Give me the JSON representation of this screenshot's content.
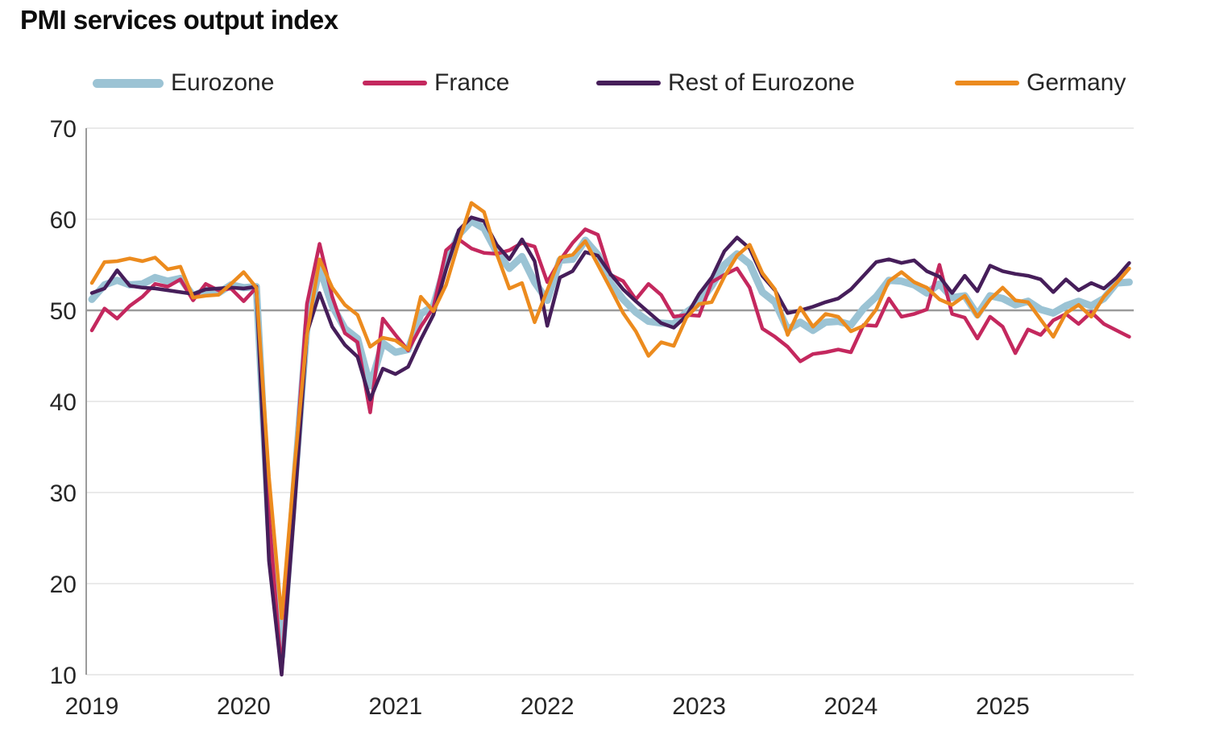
{
  "title": "PMI services output index",
  "legend": [
    {
      "label": "Eurozone",
      "color": "#9bc3d4"
    },
    {
      "label": "France",
      "color": "#c4285e"
    },
    {
      "label": "Rest of Eurozone",
      "color": "#461e5a"
    },
    {
      "label": "Germany",
      "color": "#ec8b1e"
    }
  ],
  "colors": {
    "grid": "#e4e4e4",
    "baseline_50": "#9b9b9b",
    "axis": "#9b9b9b",
    "tick_text": "#262626",
    "title_text": "#0d0d0d"
  },
  "chart_data": {
    "type": "line",
    "title": "PMI services output index",
    "xlabel": "",
    "ylabel": "",
    "ylim": [
      10,
      70
    ],
    "yticks": [
      10,
      20,
      30,
      40,
      50,
      60,
      70
    ],
    "baseline": 50,
    "grid": true,
    "legend_position": "top",
    "xtick_labels": [
      "2019",
      "2020",
      "2021",
      "2022",
      "2023",
      "2024",
      "2025"
    ],
    "x": [
      "2019-01",
      "2019-02",
      "2019-03",
      "2019-04",
      "2019-05",
      "2019-06",
      "2019-07",
      "2019-08",
      "2019-09",
      "2019-10",
      "2019-11",
      "2019-12",
      "2020-01",
      "2020-02",
      "2020-03",
      "2020-04",
      "2020-05",
      "2020-06",
      "2020-07",
      "2020-08",
      "2020-09",
      "2020-10",
      "2020-11",
      "2020-12",
      "2021-01",
      "2021-02",
      "2021-03",
      "2021-04",
      "2021-05",
      "2021-06",
      "2021-07",
      "2021-08",
      "2021-09",
      "2021-10",
      "2021-11",
      "2021-12",
      "2022-01",
      "2022-02",
      "2022-03",
      "2022-04",
      "2022-05",
      "2022-06",
      "2022-07",
      "2022-08",
      "2022-09",
      "2022-10",
      "2022-11",
      "2022-12",
      "2023-01",
      "2023-02",
      "2023-03",
      "2023-04",
      "2023-05",
      "2023-06",
      "2023-07",
      "2023-08",
      "2023-09",
      "2023-10",
      "2023-11",
      "2023-12",
      "2024-01",
      "2024-02",
      "2024-03",
      "2024-04",
      "2024-05",
      "2024-06",
      "2024-07",
      "2024-08",
      "2024-09",
      "2024-10",
      "2024-11",
      "2024-12",
      "2025-01",
      "2025-02",
      "2025-03",
      "2025-04",
      "2025-05",
      "2025-06",
      "2025-07",
      "2025-08",
      "2025-09",
      "2025-10",
      "2025-11"
    ],
    "series": [
      {
        "name": "Eurozone",
        "color": "#9bc3d4",
        "width": 9,
        "values": [
          51.2,
          52.8,
          53.3,
          52.8,
          52.9,
          53.6,
          53.2,
          53.5,
          51.6,
          52.2,
          51.9,
          52.8,
          52.5,
          52.6,
          26.4,
          12.0,
          30.5,
          48.3,
          54.7,
          50.5,
          48.0,
          46.9,
          41.7,
          46.4,
          45.4,
          45.7,
          49.6,
          50.5,
          55.2,
          58.3,
          59.8,
          59.0,
          56.4,
          54.6,
          55.9,
          53.1,
          51.1,
          55.5,
          55.6,
          57.7,
          56.1,
          53.0,
          51.2,
          49.8,
          48.8,
          48.6,
          48.5,
          49.8,
          50.8,
          52.7,
          55.0,
          56.2,
          55.1,
          52.0,
          50.9,
          47.9,
          48.7,
          47.8,
          48.7,
          48.8,
          48.4,
          50.2,
          51.5,
          53.3,
          53.2,
          52.8,
          51.9,
          52.9,
          51.4,
          51.6,
          49.5,
          51.6,
          51.3,
          50.6,
          51.0,
          50.1,
          49.7,
          50.5,
          51.0,
          50.5,
          51.3,
          53.0,
          53.1
        ]
      },
      {
        "name": "France",
        "color": "#c4285e",
        "width": 4.5,
        "values": [
          47.8,
          50.2,
          49.1,
          50.5,
          51.5,
          52.9,
          52.6,
          53.4,
          51.1,
          52.9,
          52.2,
          52.4,
          51.0,
          52.5,
          27.4,
          10.2,
          31.1,
          50.7,
          57.3,
          51.5,
          47.5,
          46.5,
          38.8,
          49.1,
          47.3,
          45.6,
          48.2,
          50.3,
          56.6,
          57.8,
          56.8,
          56.3,
          56.2,
          56.6,
          57.4,
          57.0,
          53.1,
          55.5,
          57.4,
          58.9,
          58.3,
          53.9,
          53.2,
          51.2,
          52.9,
          51.7,
          49.3,
          49.5,
          49.4,
          53.1,
          53.9,
          54.6,
          52.5,
          48.0,
          47.1,
          46.0,
          44.4,
          45.2,
          45.4,
          45.7,
          45.4,
          48.4,
          48.3,
          51.3,
          49.3,
          49.6,
          50.1,
          55.0,
          49.6,
          49.2,
          46.9,
          49.3,
          48.2,
          45.3,
          47.9,
          47.3,
          48.9,
          49.6,
          48.5,
          49.8,
          48.5,
          47.8,
          47.1
        ]
      },
      {
        "name": "Rest of Eurozone",
        "color": "#461e5a",
        "width": 4.5,
        "values": [
          51.9,
          52.4,
          54.4,
          52.7,
          52.5,
          52.4,
          52.2,
          52.0,
          51.8,
          52.3,
          52.4,
          52.5,
          52.4,
          52.6,
          22.5,
          10.0,
          28.0,
          47.5,
          51.9,
          48.2,
          46.2,
          44.9,
          40.2,
          43.6,
          43.0,
          43.8,
          46.8,
          49.5,
          54.5,
          58.8,
          60.2,
          59.8,
          57.2,
          55.6,
          57.8,
          55.4,
          48.3,
          53.6,
          54.3,
          56.4,
          56.0,
          54.0,
          52.3,
          51.0,
          49.8,
          48.6,
          48.1,
          49.4,
          51.8,
          53.6,
          56.5,
          58.0,
          56.8,
          53.8,
          52.2,
          49.7,
          50.0,
          50.4,
          50.9,
          51.3,
          52.3,
          53.8,
          55.3,
          55.6,
          55.2,
          55.5,
          54.3,
          53.7,
          51.9,
          53.8,
          52.1,
          54.9,
          54.3,
          54.0,
          53.8,
          53.4,
          52.0,
          53.4,
          52.2,
          53.0,
          52.4,
          53.6,
          55.2
        ]
      },
      {
        "name": "Germany",
        "color": "#ec8b1e",
        "width": 4.5,
        "values": [
          53.0,
          55.3,
          55.4,
          55.7,
          55.4,
          55.8,
          54.5,
          54.8,
          51.4,
          51.6,
          51.7,
          52.9,
          54.2,
          52.5,
          31.7,
          16.2,
          32.6,
          47.3,
          55.6,
          52.5,
          50.6,
          49.5,
          46.0,
          47.0,
          46.7,
          45.7,
          51.5,
          49.9,
          52.8,
          57.5,
          61.8,
          60.8,
          56.2,
          52.4,
          53.0,
          48.7,
          52.2,
          55.8,
          56.1,
          57.6,
          55.0,
          52.4,
          49.7,
          47.7,
          45.0,
          46.5,
          46.1,
          49.2,
          50.7,
          50.9,
          53.7,
          56.0,
          57.2,
          54.1,
          52.3,
          47.3,
          50.3,
          48.2,
          49.6,
          49.3,
          47.7,
          48.3,
          50.1,
          53.2,
          54.2,
          53.1,
          52.5,
          51.2,
          50.6,
          51.6,
          49.3,
          51.2,
          52.5,
          51.1,
          50.9,
          49.0,
          47.1,
          49.7,
          50.6,
          49.3,
          51.5,
          53.0,
          54.6
        ]
      }
    ]
  }
}
